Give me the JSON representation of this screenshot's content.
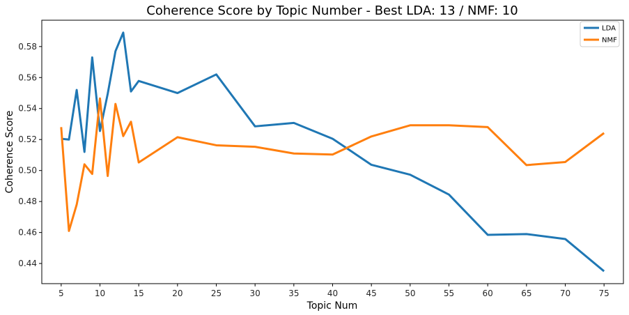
{
  "chart_data": {
    "type": "line",
    "title": "Coherence Score by Topic Number - Best LDA: 13 / NMF: 10",
    "xlabel": "Topic Num",
    "ylabel": "Coherence Score",
    "xlim": [
      2.5,
      77.5
    ],
    "ylim": [
      0.427,
      0.597
    ],
    "x_ticks": [
      5,
      10,
      15,
      20,
      25,
      30,
      35,
      40,
      45,
      50,
      55,
      60,
      65,
      70,
      75
    ],
    "y_ticks": [
      0.44,
      0.46,
      0.48,
      0.5,
      0.52,
      0.54,
      0.56,
      0.58
    ],
    "y_tick_labels": [
      "0.44",
      "0.46",
      "0.48",
      "0.50",
      "0.52",
      "0.54",
      "0.56",
      "0.58"
    ],
    "grid": false,
    "legend_position": "top-right",
    "x": [
      5,
      6,
      7,
      8,
      9,
      10,
      11,
      12,
      13,
      14,
      15,
      20,
      25,
      30,
      35,
      40,
      45,
      50,
      55,
      60,
      65,
      70,
      75
    ],
    "series": [
      {
        "name": "LDA",
        "color": "#1f77b4",
        "values": [
          0.5205,
          0.52,
          0.552,
          0.512,
          0.573,
          0.5255,
          0.5495,
          0.577,
          0.589,
          0.551,
          0.5578,
          0.55,
          0.562,
          0.5285,
          0.5307,
          0.5205,
          0.5037,
          0.4973,
          0.4845,
          0.4585,
          0.459,
          0.4558,
          0.435
        ]
      },
      {
        "name": "NMF",
        "color": "#ff7f0e",
        "values": [
          0.528,
          0.461,
          0.478,
          0.504,
          0.4978,
          0.5465,
          0.4965,
          0.543,
          0.5222,
          0.5315,
          0.5052,
          0.5215,
          0.5163,
          0.5153,
          0.511,
          0.5103,
          0.522,
          0.5292,
          0.5292,
          0.528,
          0.5035,
          0.5055,
          0.5242
        ]
      }
    ]
  }
}
